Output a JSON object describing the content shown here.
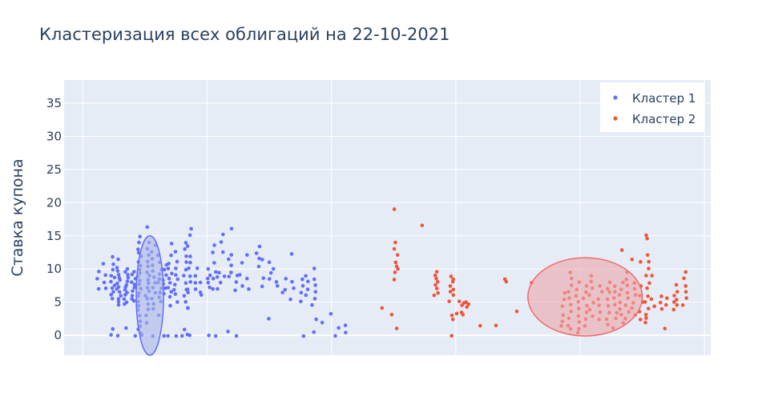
{
  "chart_data": {
    "type": "scatter",
    "title": "Кластеризация всех облигаций на  22-10-2021",
    "xlabel": "",
    "ylabel": "Ставка купона",
    "xlim": [
      -1.5,
      50.5
    ],
    "ylim": [
      -3,
      38.5
    ],
    "yticks": [
      0,
      5,
      10,
      15,
      20,
      25,
      30,
      35
    ],
    "x_gridlines": [
      0,
      10,
      20,
      30,
      40,
      50
    ],
    "x_tick_labels_shown": false,
    "grid": true,
    "legend_position": "top-right",
    "colors": {
      "plot_bg": "#e5ecf6",
      "grid": "#ffffff",
      "text": "#2a3f5f",
      "cluster1": "#636efa",
      "cluster2": "#ef553b"
    },
    "series": [
      {
        "name": "Кластер 1",
        "color": "#636efa",
        "columns": [
          {
            "x": 1.3,
            "y": [
              9.6,
              8.6,
              7.0
            ]
          },
          {
            "x": 1.8,
            "y": [
              10.7,
              9.1,
              7.9,
              7.2
            ]
          },
          {
            "x": 2.4,
            "y": [
              11.9,
              10.8,
              9.9,
              9.1,
              8.6,
              8.1,
              7.6,
              7.1,
              6.6,
              6.0,
              5.6,
              1.0,
              0.0
            ]
          },
          {
            "x": 2.9,
            "y": [
              11.5,
              10.1,
              9.6,
              9.2,
              8.7,
              8.3,
              7.9,
              7.4,
              7.0,
              6.5,
              6.0,
              5.5,
              5.0,
              4.6,
              0.0
            ]
          },
          {
            "x": 3.5,
            "y": [
              10.1,
              9.5,
              9.0,
              8.6,
              8.1,
              7.7,
              7.3,
              6.9,
              6.4,
              6.0,
              5.5,
              5.0,
              4.6,
              1.0
            ]
          },
          {
            "x": 4.1,
            "y": [
              9.6,
              9.1,
              8.6,
              8.1,
              7.6,
              7.1,
              6.6,
              6.1,
              5.6,
              5.1,
              0.0
            ]
          },
          {
            "x": 4.6,
            "y": [
              15.0,
              14.0,
              13.0,
              12.5,
              12.0,
              11.2,
              10.6,
              10.0,
              9.4,
              8.8,
              8.2,
              7.6,
              7.0,
              6.4,
              5.8,
              5.2,
              4.5,
              3.8,
              3.0,
              2.0,
              1.4,
              0.8,
              0.3,
              0.0
            ]
          },
          {
            "x": 5.2,
            "y": [
              16.2,
              14.0,
              13.0,
              12.0,
              11.0,
              10.3,
              9.6,
              9.0,
              8.4,
              7.8,
              7.2,
              6.6,
              6.0,
              5.4,
              4.8,
              4.0,
              3.0,
              2.0
            ]
          },
          {
            "x": 5.7,
            "y": [
              13.6,
              12.6,
              11.5,
              10.5,
              9.6,
              8.8,
              8.0,
              7.2,
              6.4,
              5.6,
              4.8,
              4.0,
              0.0
            ]
          },
          {
            "x": 6.2,
            "y": [
              12.0,
              11.0,
              10.0,
              9.3,
              8.6,
              7.9,
              7.2,
              6.5,
              5.8,
              5.1,
              3.0
            ]
          },
          {
            "x": 6.6,
            "y": [
              10.5,
              9.8,
              9.1,
              8.4,
              7.7,
              7.0,
              6.3,
              0.0
            ]
          },
          {
            "x": 7.0,
            "y": [
              13.8,
              12.0,
              10.8,
              10.0,
              9.3,
              8.6,
              7.9,
              7.2,
              6.5,
              5.8,
              4.5,
              0.0
            ]
          },
          {
            "x": 7.5,
            "y": [
              12.5,
              11.0,
              10.0,
              9.2,
              8.5,
              7.7,
              6.9,
              6.1,
              5.0,
              0.0
            ]
          },
          {
            "x": 8.0,
            "y": [
              0.0
            ]
          },
          {
            "x": 8.3,
            "y": [
              14.0,
              13.0,
              12.0,
              11.0,
              10.0,
              9.0,
              8.0,
              7.0,
              6.0,
              5.0,
              4.0,
              1.0,
              0.0
            ]
          },
          {
            "x": 8.6,
            "y": [
              16.0,
              15.0,
              13.5,
              12.0,
              11.0,
              10.0,
              9.0,
              8.0,
              7.0,
              6.5,
              4.2,
              0.0
            ]
          },
          {
            "x": 9.2,
            "y": [
              10.0,
              9.0,
              8.0,
              7.0
            ]
          },
          {
            "x": 9.6,
            "y": [
              8.0,
              6.5,
              6.0
            ]
          },
          {
            "x": 10.1,
            "y": [
              10.0,
              9.0,
              8.5,
              8.0,
              7.3,
              0.0
            ]
          },
          {
            "x": 10.6,
            "y": [
              13.5,
              12.5,
              11.0,
              9.5,
              8.5,
              7.0,
              0.0
            ]
          },
          {
            "x": 11.0,
            "y": [
              9.5,
              8.8,
              8.0,
              7.0
            ]
          },
          {
            "x": 11.3,
            "y": [
              15.2,
              14.0,
              12.5,
              9.0
            ]
          },
          {
            "x": 11.8,
            "y": [
              16.0,
              12.2,
              11.5,
              10.5,
              9.5,
              8.8,
              0.5
            ]
          },
          {
            "x": 12.4,
            "y": [
              9.0,
              8.0,
              6.8,
              0.0
            ]
          },
          {
            "x": 12.8,
            "y": [
              11.0,
              9.0,
              7.5
            ]
          },
          {
            "x": 13.3,
            "y": [
              12.0,
              8.5,
              7.0
            ]
          },
          {
            "x": 14.1,
            "y": [
              13.5,
              12.5,
              11.5,
              10.5
            ]
          },
          {
            "x": 14.6,
            "y": [
              11.5,
              8.5,
              7.5
            ]
          },
          {
            "x": 15.1,
            "y": [
              11.0,
              9.5,
              8.5,
              2.5
            ]
          },
          {
            "x": 15.5,
            "y": [
              10.0,
              8.0,
              7.5
            ]
          },
          {
            "x": 16.2,
            "y": [
              8.5,
              7.0,
              6.5
            ]
          },
          {
            "x": 16.8,
            "y": [
              12.2,
              8.0,
              7.0,
              5.5
            ]
          },
          {
            "x": 17.6,
            "y": [
              8.5,
              7.5,
              6.5,
              5.0,
              0.0
            ]
          },
          {
            "x": 18.0,
            "y": [
              9.0,
              8.0,
              7.0,
              6.0
            ]
          },
          {
            "x": 18.6,
            "y": [
              10.0,
              8.5,
              7.5,
              6.5,
              5.5,
              4.5,
              2.5,
              0.5
            ]
          },
          {
            "x": 19.3,
            "y": [
              2.0
            ]
          },
          {
            "x": 20.0,
            "y": [
              3.3
            ]
          },
          {
            "x": 20.4,
            "y": [
              0.0
            ]
          },
          {
            "x": 20.7,
            "y": [
              1.2
            ]
          },
          {
            "x": 21.2,
            "y": [
              1.5,
              0.5
            ]
          }
        ]
      },
      {
        "name": "Кластер 2",
        "color": "#ef553b",
        "columns": [
          {
            "x": 24.0,
            "y": [
              4.2
            ]
          },
          {
            "x": 25.0,
            "y": [
              3.2
            ]
          },
          {
            "x": 25.2,
            "y": [
              19.0,
              14.0,
              13.0,
              12.0,
              11.0,
              10.5,
              10.0,
              9.5,
              8.5,
              1.0
            ]
          },
          {
            "x": 27.4,
            "y": [
              16.5
            ]
          },
          {
            "x": 28.4,
            "y": [
              9.5,
              9.0,
              8.5,
              8.0,
              7.5,
              7.0,
              6.5,
              6.0
            ]
          },
          {
            "x": 29.3,
            "y": [
              5.0
            ]
          },
          {
            "x": 29.7,
            "y": [
              9.0,
              8.5,
              8.0,
              7.5,
              7.0,
              6.5,
              6.0,
              3.0,
              2.5
            ]
          },
          {
            "x": 30.2,
            "y": [
              5.2,
              3.2
            ]
          },
          {
            "x": 30.6,
            "y": [
              5.0,
              4.5,
              3.5,
              3.0
            ]
          },
          {
            "x": 30.8,
            "y": [
              5.0,
              4.3
            ]
          },
          {
            "x": 31.1,
            "y": [
              4.8
            ]
          },
          {
            "x": 29.8,
            "y": [
              0.0
            ]
          },
          {
            "x": 32.0,
            "y": [
              1.5
            ]
          },
          {
            "x": 33.2,
            "y": [
              1.6
            ]
          },
          {
            "x": 35.0,
            "y": [
              3.5
            ]
          },
          {
            "x": 34.0,
            "y": [
              8.5,
              8.0
            ]
          },
          {
            "x": 36.2,
            "y": [
              8.0
            ]
          },
          {
            "x": 38.6,
            "y": [
              6.5,
              5.5,
              4.5,
              3.0,
              2.0,
              1.5
            ]
          },
          {
            "x": 39.2,
            "y": [
              9.5,
              8.5,
              7.5,
              6.5,
              5.5,
              4.5,
              3.5,
              2.5,
              1.5,
              1.0
            ]
          },
          {
            "x": 39.8,
            "y": [
              8.0,
              7.0,
              6.0,
              5.0,
              4.0,
              3.0,
              2.0,
              1.0,
              0.5
            ]
          },
          {
            "x": 40.4,
            "y": [
              7.5,
              6.5,
              5.5,
              4.5,
              3.5,
              2.5,
              1.5
            ]
          },
          {
            "x": 40.9,
            "y": [
              9.0,
              8.0,
              7.0,
              6.0,
              5.0,
              4.0,
              3.0
            ]
          },
          {
            "x": 41.6,
            "y": [
              7.5,
              6.5,
              5.5,
              4.5,
              3.5,
              2.5
            ]
          },
          {
            "x": 42.3,
            "y": [
              8.0,
              7.0,
              6.5,
              5.5,
              4.5,
              3.5,
              2.5,
              1.5
            ]
          },
          {
            "x": 42.8,
            "y": [
              7.5,
              6.5,
              5.5,
              4.5,
              3.5,
              2.5,
              1.0
            ]
          },
          {
            "x": 43.3,
            "y": [
              12.8,
              8.0,
              7.0,
              6.0,
              5.0,
              4.0,
              3.0,
              2.0
            ]
          },
          {
            "x": 43.8,
            "y": [
              9.5,
              8.5,
              7.5,
              6.5,
              5.5,
              4.5,
              3.5,
              2.5
            ]
          },
          {
            "x": 44.3,
            "y": [
              11.5,
              8.0,
              7.0,
              6.0,
              5.0,
              4.0,
              3.0
            ]
          },
          {
            "x": 44.9,
            "y": [
              11.0,
              7.5,
              6.0,
              5.0,
              3.5,
              2.5
            ]
          },
          {
            "x": 45.4,
            "y": [
              15.0,
              14.5,
              12.0,
              11.0,
              10.0,
              9.0,
              8.0,
              7.0,
              6.0,
              5.0,
              4.0,
              3.0,
              2.5,
              2.0
            ]
          },
          {
            "x": 45.9,
            "y": [
              9.0,
              5.5,
              4.5
            ]
          },
          {
            "x": 46.4,
            "y": [
              6.0,
              5.0,
              4.0
            ]
          },
          {
            "x": 46.9,
            "y": [
              5.5,
              4.5,
              1.0
            ]
          },
          {
            "x": 47.4,
            "y": [
              6.0,
              5.0,
              4.0
            ]
          },
          {
            "x": 47.9,
            "y": [
              7.5,
              6.5,
              5.5,
              4.5
            ]
          },
          {
            "x": 48.4,
            "y": [
              9.5,
              8.5,
              7.5,
              6.5,
              5.5,
              4.5
            ]
          }
        ]
      }
    ],
    "cluster_regions": [
      {
        "series": "Кластер 1",
        "cx": 5.4,
        "cy": 6.0,
        "rx": 1.1,
        "ry": 9.0,
        "fill": "#aab6e8",
        "stroke": "#636efa"
      },
      {
        "series": "Кластер 2",
        "cx": 40.4,
        "cy": 5.8,
        "rx": 4.6,
        "ry": 5.9,
        "fill": "#eba6ab",
        "stroke": "#ef6b6b"
      }
    ]
  }
}
